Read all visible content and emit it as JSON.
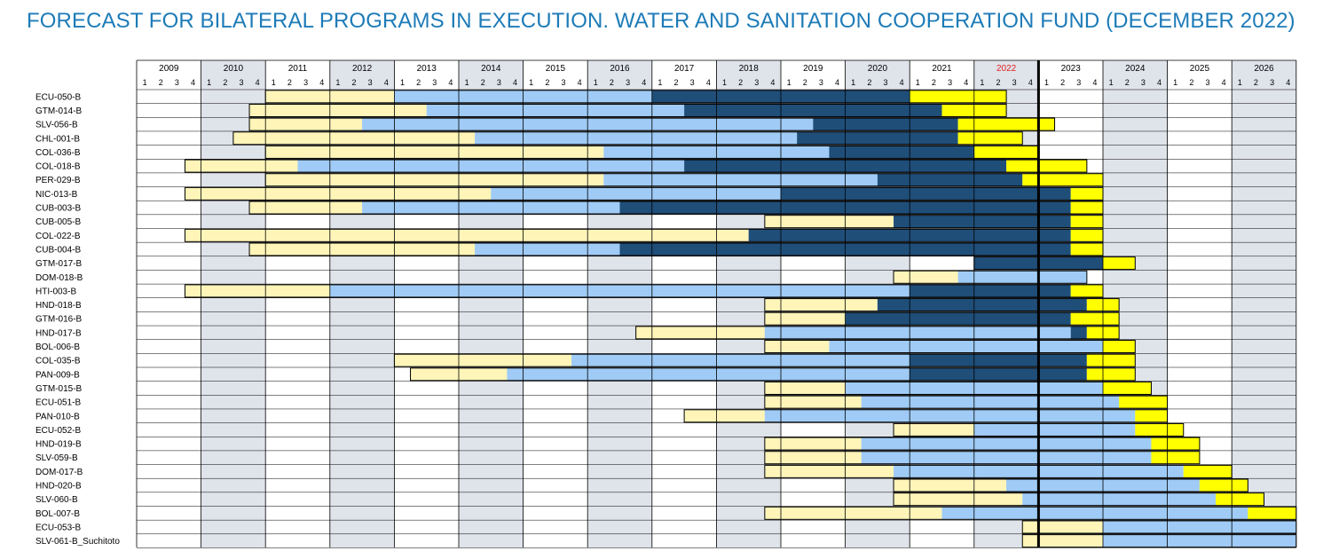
{
  "title": "FORECAST FOR BILATERAL PROGRAMS IN EXECUTION. WATER AND SANITATION COOPERATION FUND (DECEMBER 2022)",
  "colors": {
    "title": "#1d7bb8",
    "phase_1": "#fff5b8",
    "phase_2": "#9fcbf6",
    "phase_3": "#1f4e79",
    "phase_4": "#ffff00",
    "shaded_year": "#dfe3ea",
    "current_year_label": "#e02020",
    "current_date_line": "#000000"
  },
  "chart_data": {
    "type": "gantt",
    "x_axis": {
      "years": [
        "2009",
        "2010",
        "2011",
        "2012",
        "2013",
        "2014",
        "2015",
        "2016",
        "2017",
        "2018",
        "2019",
        "2020",
        "2021",
        "2022",
        "2023",
        "2024",
        "2025",
        "2026"
      ],
      "quarter_labels": [
        "1",
        "2",
        "3",
        "4"
      ],
      "highlighted_year": "2022",
      "shaded_years": [
        "2010",
        "2012",
        "2014",
        "2016",
        "2018",
        "2020",
        "2022",
        "2024",
        "2026"
      ],
      "current_date_marker": "end of 2022 Q4"
    },
    "phase_order": [
      "phase_1",
      "phase_2",
      "phase_3",
      "phase_4"
    ],
    "programs": [
      {
        "code": "ECU-050-B",
        "phase_starts": [
          "2011 Q1",
          "2013 Q1",
          "2017 Q1",
          "2021 Q1"
        ],
        "end": "2022 Q2"
      },
      {
        "code": "GTM-014-B",
        "phase_starts": [
          "2010 Q4",
          "2013 Q3",
          "2017 Q3",
          "2021 Q3"
        ],
        "end": "2022 Q2"
      },
      {
        "code": "SLV-056-B",
        "phase_starts": [
          "2010 Q4",
          "2012 Q3",
          "2019 Q3",
          "2021 Q4"
        ],
        "end": "2023 Q1"
      },
      {
        "code": "CHL-001-B",
        "phase_starts": [
          "2010 Q3",
          "2014 Q2",
          "2019 Q2",
          "2021 Q4"
        ],
        "end": "2022 Q3"
      },
      {
        "code": "COL-036-B",
        "phase_starts": [
          "2011 Q1",
          "2016 Q2",
          "2019 Q4",
          "2022 Q1"
        ],
        "end": "2022 Q4"
      },
      {
        "code": "COL-018-B",
        "phase_starts": [
          "2009 Q4",
          "2011 Q3",
          "2017 Q3",
          "2022 Q3"
        ],
        "end": "2023 Q3"
      },
      {
        "code": "PER-029-B",
        "phase_starts": [
          "2011 Q1",
          "2016 Q2",
          "2020 Q3",
          "2022 Q4"
        ],
        "end": "2023 Q4"
      },
      {
        "code": "NIC-013-B",
        "phase_starts": [
          "2009 Q4",
          "2014 Q3",
          "2019 Q1",
          "2023 Q3"
        ],
        "end": "2023 Q4"
      },
      {
        "code": "CUB-003-B",
        "phase_starts": [
          "2010 Q4",
          "2012 Q3",
          "2016 Q3",
          "2023 Q3"
        ],
        "end": "2023 Q4"
      },
      {
        "code": "CUB-005-B",
        "phase_starts": [
          "2018 Q4",
          null,
          "2020 Q4",
          "2023 Q3"
        ],
        "end": "2023 Q4"
      },
      {
        "code": "COL-022-B",
        "phase_starts": [
          "2009 Q4",
          null,
          "2018 Q3",
          "2023 Q3"
        ],
        "end": "2023 Q4"
      },
      {
        "code": "CUB-004-B",
        "phase_starts": [
          "2010 Q4",
          "2014 Q2",
          "2016 Q3",
          "2023 Q3"
        ],
        "end": "2023 Q4"
      },
      {
        "code": "GTM-017-B",
        "phase_starts": [
          null,
          null,
          "2022 Q1",
          "2024 Q1"
        ],
        "end": "2024 Q2"
      },
      {
        "code": "DOM-018-B",
        "phase_starts": [
          "2020 Q4",
          "2021 Q4",
          null,
          null
        ],
        "end": "2023 Q3"
      },
      {
        "code": "HTI-003-B",
        "phase_starts": [
          "2009 Q4",
          "2012 Q1",
          "2021 Q1",
          "2023 Q3"
        ],
        "end": "2023 Q4"
      },
      {
        "code": "HND-018-B",
        "phase_starts": [
          "2018 Q4",
          "2020 Q3",
          "2020 Q3",
          "2023 Q4"
        ],
        "end": "2024 Q1"
      },
      {
        "code": "GTM-016-B",
        "phase_starts": [
          "2018 Q4",
          null,
          "2020 Q1",
          "2023 Q3"
        ],
        "end": "2024 Q1"
      },
      {
        "code": "HND-017-B",
        "phase_starts": [
          "2016 Q4",
          "2018 Q4",
          "2023 Q3",
          "2023 Q4"
        ],
        "end": "2024 Q1"
      },
      {
        "code": "BOL-006-B",
        "phase_starts": [
          "2018 Q4",
          "2019 Q4",
          null,
          "2024 Q1"
        ],
        "end": "2024 Q2"
      },
      {
        "code": "COL-035-B",
        "phase_starts": [
          "2013 Q1",
          "2015 Q4",
          "2021 Q1",
          "2023 Q4"
        ],
        "end": "2024 Q2"
      },
      {
        "code": "PAN-009-B",
        "phase_starts": [
          "2013 Q2",
          "2014 Q4",
          "2021 Q1",
          "2023 Q4"
        ],
        "end": "2024 Q2"
      },
      {
        "code": "GTM-015-B",
        "phase_starts": [
          "2018 Q4",
          "2020 Q1",
          null,
          "2024 Q1"
        ],
        "end": "2024 Q3"
      },
      {
        "code": "ECU-051-B",
        "phase_starts": [
          "2018 Q4",
          "2020 Q2",
          null,
          "2024 Q2"
        ],
        "end": "2024 Q4"
      },
      {
        "code": "PAN-010-B",
        "phase_starts": [
          "2017 Q3",
          "2018 Q4",
          null,
          "2024 Q3"
        ],
        "end": "2024 Q4"
      },
      {
        "code": "ECU-052-B",
        "phase_starts": [
          "2020 Q4",
          "2022 Q1",
          null,
          "2024 Q3"
        ],
        "end": "2025 Q1"
      },
      {
        "code": "HND-019-B",
        "phase_starts": [
          "2018 Q4",
          "2020 Q2",
          null,
          "2024 Q4"
        ],
        "end": "2025 Q2"
      },
      {
        "code": "SLV-059-B",
        "phase_starts": [
          "2018 Q4",
          "2020 Q2",
          null,
          "2024 Q4"
        ],
        "end": "2025 Q2"
      },
      {
        "code": "DOM-017-B",
        "phase_starts": [
          "2018 Q4",
          "2020 Q4",
          null,
          "2025 Q2"
        ],
        "end": "2025 Q4"
      },
      {
        "code": "HND-020-B",
        "phase_starts": [
          "2020 Q4",
          "2022 Q3",
          null,
          "2025 Q3"
        ],
        "end": "2026 Q1"
      },
      {
        "code": "SLV-060-B",
        "phase_starts": [
          "2020 Q4",
          "2022 Q4",
          null,
          "2025 Q4"
        ],
        "end": "2026 Q2"
      },
      {
        "code": "BOL-007-B",
        "phase_starts": [
          "2018 Q4",
          "2021 Q3",
          null,
          "2026 Q2"
        ],
        "end": "2026 Q4"
      },
      {
        "code": "ECU-053-B",
        "phase_starts": [
          "2022 Q4",
          "2024 Q1",
          null,
          null
        ],
        "end": "2026 Q4"
      },
      {
        "code": "SLV-061-B_Suchitoto",
        "phase_starts": [
          "2022 Q4",
          "2024 Q1",
          null,
          null
        ],
        "end": "2026 Q4"
      }
    ]
  }
}
